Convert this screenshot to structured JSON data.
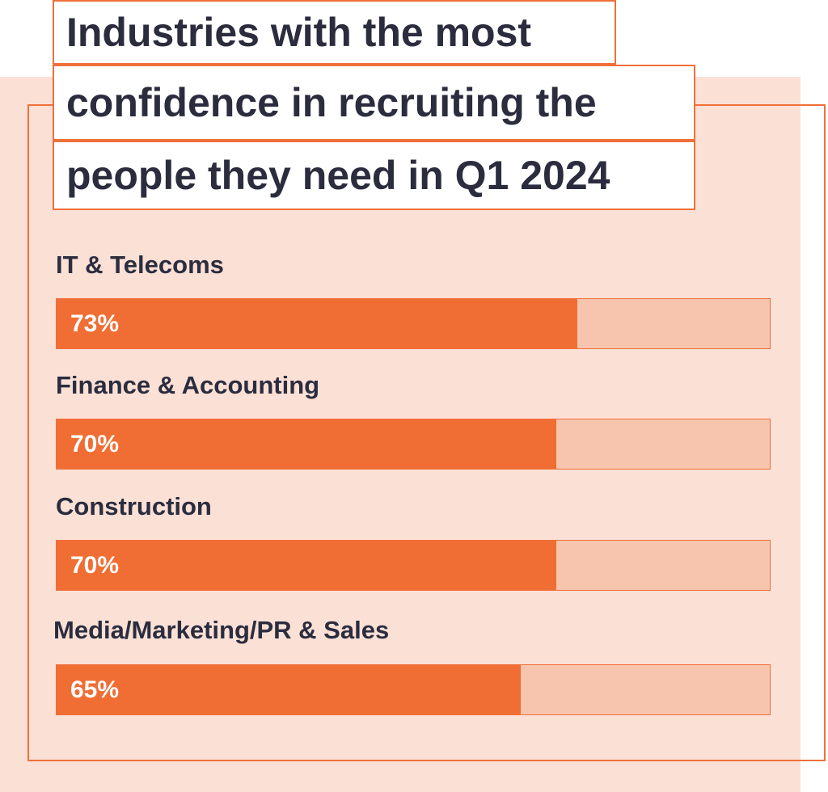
{
  "chart_data": {
    "type": "bar",
    "orientation": "horizontal",
    "title": "Industries with the most confidence in recruiting the people they need in Q1 2024",
    "title_lines": [
      "Industries with the most",
      "confidence in recruiting the",
      "people they need in Q1 2024"
    ],
    "categories": [
      "IT & Telecoms",
      "Finance & Accounting",
      "Construction",
      "Media/Marketing/PR & Sales"
    ],
    "values": [
      73,
      70,
      70,
      65
    ],
    "value_labels": [
      "73%",
      "70%",
      "70%",
      "65%"
    ],
    "xlim": [
      0,
      100
    ],
    "grid": false,
    "legend": "none"
  },
  "colors": {
    "bar_fill": "#f06e34",
    "bar_track": "#f7c4ad",
    "panel_background": "#fbe0d6",
    "accent_border": "#f0703a",
    "text": "#2b2d3e"
  }
}
